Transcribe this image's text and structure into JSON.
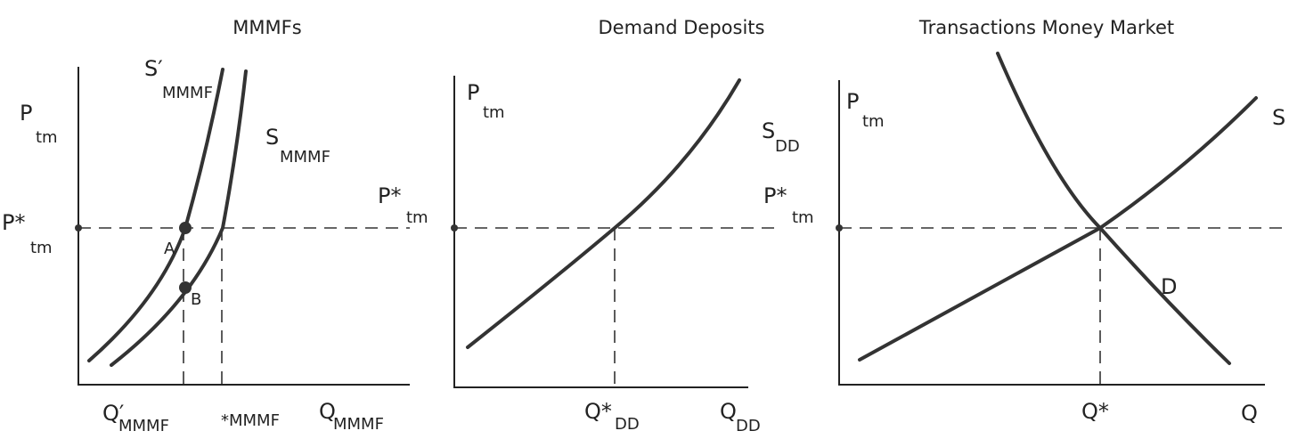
{
  "panels": [
    {
      "title": "MMMFs",
      "labels": [
        {
          "main": "P",
          "sub": "tm"
        },
        {
          "main": "S′",
          "sub": "MMMF"
        },
        {
          "main": "S",
          "sub": "MMMF"
        },
        {
          "main": "A"
        },
        {
          "main": "B"
        },
        {
          "main": "P*",
          "sub": "tm"
        },
        {
          "main": "Q′",
          "sub": "MMMF"
        },
        {
          "main": "*MMMF"
        },
        {
          "main": "Q",
          "sub": "MMMF"
        }
      ]
    },
    {
      "title": "Demand Deposits",
      "labels": [
        {
          "main": "P",
          "sub": "tm"
        },
        {
          "main": "S",
          "sub": "DD"
        },
        {
          "main": "P*",
          "sub": "tm"
        },
        {
          "main": "Q*",
          "sub": "DD"
        },
        {
          "main": "Q",
          "sub": "DD"
        }
      ]
    },
    {
      "title": "Transactions Money Market",
      "labels": [
        {
          "main": "P",
          "sub": "tm"
        },
        {
          "main": "S"
        },
        {
          "main": "P*",
          "sub": "tm"
        },
        {
          "main": "D"
        },
        {
          "main": "Q*"
        },
        {
          "main": "Q"
        }
      ]
    }
  ]
}
